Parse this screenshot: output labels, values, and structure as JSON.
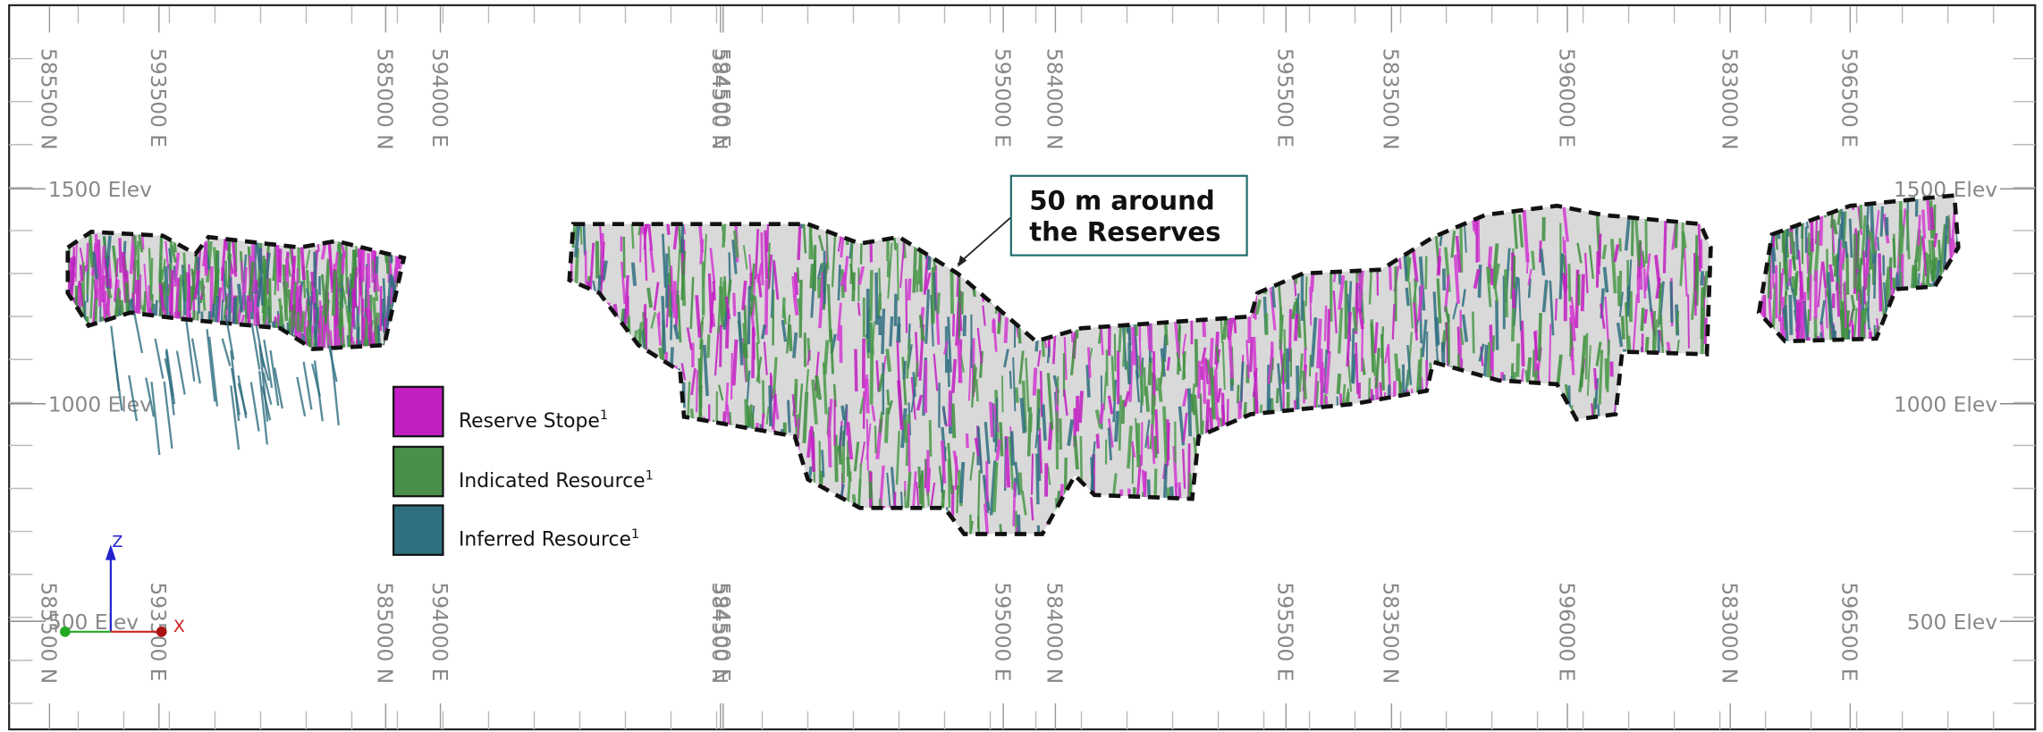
{
  "grid_labels": {
    "top": [
      "585500 N",
      "593500 E",
      "585000 N",
      "594000 E",
      "584500 N",
      "594500 E",
      "595000 E",
      "584000 N",
      "595500 E",
      "583500 N",
      "596000 E",
      "583000 N",
      "596500 E"
    ],
    "bottom": [
      "585500 N",
      "593500 E",
      "585000 N",
      "594000 E",
      "584500 N",
      "594500 E",
      "595000 E",
      "584000 N",
      "595500 E",
      "583500 N",
      "596000 E",
      "583000 N",
      "596500 E"
    ]
  },
  "elevation_labels": {
    "left": [
      "1500 Elev",
      "1000 Elev",
      "500 Elev"
    ],
    "right": [
      "1500 Elev",
      "1000 Elev",
      "500 Elev"
    ]
  },
  "callout": {
    "lines": [
      "50 m around",
      "the Reserves"
    ]
  },
  "legend": [
    {
      "label": "Reserve Stope",
      "superscript": "1"
    },
    {
      "label": "Indicated Resource",
      "superscript": "1"
    },
    {
      "label": "Inferred Resource",
      "superscript": "1"
    }
  ],
  "axis_triad": {
    "z": "Z",
    "x": "X"
  }
}
